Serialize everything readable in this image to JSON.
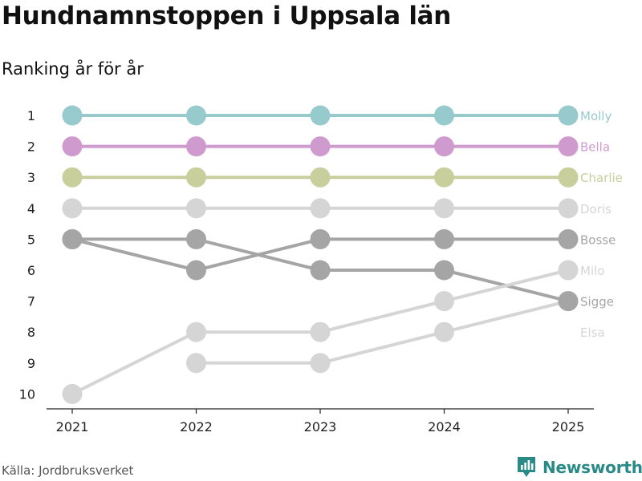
{
  "title": "Hundnamnstoppen i Uppsala län",
  "subtitle": "Ranking år för år",
  "source": "Källa: Jordbruksverket",
  "brand": {
    "name": "Newsworthy",
    "icon": "newsworthy-logo-icon",
    "color": "#2a8a88"
  },
  "chart_data": {
    "type": "line",
    "title": "Hundnamnstoppen i Uppsala län",
    "subtitle": "Ranking år för år",
    "x": [
      2021,
      2022,
      2023,
      2024,
      2025
    ],
    "x_tick_labels": [
      "2021",
      "2022",
      "2023",
      "2024",
      "2025"
    ],
    "y_tick_labels": [
      "1",
      "2",
      "3",
      "4",
      "5",
      "6",
      "7",
      "8",
      "9",
      "10"
    ],
    "ylim": [
      1,
      10
    ],
    "y_inverted": true,
    "xlabel": "",
    "ylabel": "",
    "series": [
      {
        "name": "Molly",
        "color": "#97cacc",
        "values": [
          1,
          1,
          1,
          1,
          1
        ]
      },
      {
        "name": "Bella",
        "color": "#cf9bcf",
        "values": [
          2,
          2,
          2,
          2,
          2
        ]
      },
      {
        "name": "Charlie",
        "color": "#c8cf9c",
        "values": [
          3,
          3,
          3,
          3,
          3
        ]
      },
      {
        "name": "Doris",
        "color": "#d5d5d5",
        "values": [
          4,
          4,
          4,
          4,
          4
        ]
      },
      {
        "name": "Bosse",
        "color": "#a5a5a5",
        "values": [
          5,
          6,
          5,
          5,
          5
        ]
      },
      {
        "name": "Milo",
        "color": "#d5d5d5",
        "values": [
          10,
          8,
          8,
          7,
          6
        ]
      },
      {
        "name": "Sigge",
        "color": "#a5a5a5",
        "values": [
          5,
          5,
          6,
          6,
          7
        ]
      },
      {
        "name": "Elsa",
        "color": "#d5d5d5",
        "values": [
          null,
          9,
          9,
          8,
          7
        ]
      }
    ]
  }
}
